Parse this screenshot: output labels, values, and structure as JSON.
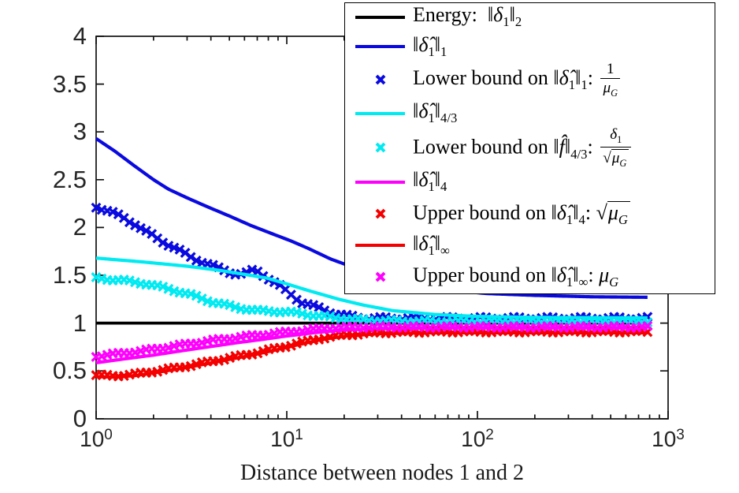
{
  "axes": {
    "xlabel": "Distance between nodes 1 and 2",
    "x_scale": "log",
    "xlim": [
      1,
      1000
    ],
    "ylim": [
      0,
      4
    ],
    "x_ticks": [
      {
        "base": "10",
        "exp": "0"
      },
      {
        "base": "10",
        "exp": "1"
      },
      {
        "base": "10",
        "exp": "2"
      },
      {
        "base": "10",
        "exp": "3"
      }
    ],
    "y_ticks": [
      "0",
      "0.5",
      "1",
      "1.5",
      "2",
      "2.5",
      "3",
      "3.5",
      "4"
    ],
    "grid": false
  },
  "chart_data": {
    "type": "line",
    "title": "",
    "xlabel": "Distance between nodes 1 and 2",
    "ylabel": "",
    "x_scale": "log",
    "xlim": [
      1,
      1000
    ],
    "ylim": [
      0,
      4
    ],
    "legend_position": "top-right",
    "series": [
      {
        "id": "energy",
        "label": "Energy: ‖δ₁‖₂",
        "color": "#000000",
        "style": "line",
        "lw": 3.8,
        "points": [
          [
            1,
            1.0
          ],
          [
            780,
            1.0
          ]
        ]
      },
      {
        "id": "l1-norm",
        "label": "‖δ̂₁‖₁",
        "color": "#0a0ae0",
        "style": "line",
        "lw": 4.2,
        "points": [
          [
            1,
            2.93
          ],
          [
            1.25,
            2.8
          ],
          [
            1.6,
            2.64
          ],
          [
            2,
            2.5
          ],
          [
            2.4,
            2.4
          ],
          [
            3,
            2.31
          ],
          [
            3.8,
            2.22
          ],
          [
            5,
            2.12
          ],
          [
            6.5,
            2.02
          ],
          [
            8.5,
            1.93
          ],
          [
            10.5,
            1.86
          ],
          [
            13,
            1.78
          ],
          [
            17,
            1.67
          ],
          [
            22.6,
            1.58
          ],
          [
            30,
            1.5
          ],
          [
            45,
            1.42
          ],
          [
            70,
            1.35
          ],
          [
            110,
            1.31
          ],
          [
            200,
            1.29
          ],
          [
            400,
            1.275
          ],
          [
            780,
            1.27
          ]
        ]
      },
      {
        "id": "l1-lower-bound",
        "label": "Lower bound on ‖δ̂₁‖₁: 1/μ_G",
        "color": "#0a0ae0",
        "style": "x",
        "wiggle": 0.015,
        "points": [
          [
            1,
            2.22
          ],
          [
            1.16,
            2.17
          ],
          [
            1.4,
            2.1
          ],
          [
            1.62,
            2.03
          ],
          [
            1.77,
            1.97
          ],
          [
            2.04,
            1.9
          ],
          [
            2.31,
            1.84
          ],
          [
            2.61,
            1.78
          ],
          [
            3.07,
            1.7
          ],
          [
            3.72,
            1.63
          ],
          [
            4.41,
            1.57
          ],
          [
            5.3,
            1.52
          ],
          [
            6,
            1.51
          ],
          [
            6.8,
            1.56
          ],
          [
            7.6,
            1.5
          ],
          [
            9,
            1.4
          ],
          [
            10.5,
            1.3
          ],
          [
            12,
            1.22
          ],
          [
            14,
            1.17
          ],
          [
            16,
            1.13
          ],
          [
            18,
            1.1
          ],
          [
            21,
            1.07
          ],
          [
            26,
            1.05
          ],
          [
            40,
            1.05
          ],
          [
            780,
            1.05
          ]
        ]
      },
      {
        "id": "l43-norm",
        "label": "‖δ̂₁‖_{4/3}",
        "color": "#00eaf2",
        "style": "line",
        "lw": 4.2,
        "points": [
          [
            1,
            1.68
          ],
          [
            1.75,
            1.64
          ],
          [
            3,
            1.595
          ],
          [
            4.5,
            1.55
          ],
          [
            6,
            1.51
          ],
          [
            7.9,
            1.47
          ],
          [
            10,
            1.41
          ],
          [
            13,
            1.34
          ],
          [
            18.7,
            1.25
          ],
          [
            25,
            1.19
          ],
          [
            36,
            1.13
          ],
          [
            60,
            1.09
          ],
          [
            100,
            1.07
          ],
          [
            200,
            1.06
          ],
          [
            780,
            1.055
          ]
        ]
      },
      {
        "id": "l43-lower-bound",
        "label": "Lower bound on ‖f̂‖_{4/3}: δ₁/√μ_G",
        "color": "#00eaf2",
        "style": "x",
        "wiggle": 0.011,
        "points": [
          [
            1,
            1.47
          ],
          [
            1.4,
            1.445
          ],
          [
            1.85,
            1.41
          ],
          [
            2.5,
            1.35
          ],
          [
            3.2,
            1.29
          ],
          [
            4.1,
            1.22
          ],
          [
            5,
            1.18
          ],
          [
            6,
            1.15
          ],
          [
            7,
            1.13
          ],
          [
            8.5,
            1.125
          ],
          [
            10,
            1.115
          ],
          [
            12,
            1.1
          ],
          [
            14,
            1.08
          ],
          [
            19,
            1.05
          ],
          [
            26,
            1.03
          ],
          [
            40,
            1.02
          ],
          [
            70,
            1.015
          ],
          [
            780,
            1.015
          ]
        ]
      },
      {
        "id": "l4-norm",
        "label": "‖δ̂₁‖₄",
        "color": "#ff00ff",
        "style": "line",
        "lw": 4.2,
        "points": [
          [
            1,
            0.585
          ],
          [
            1.4,
            0.625
          ],
          [
            2,
            0.665
          ],
          [
            2.8,
            0.71
          ],
          [
            4,
            0.755
          ],
          [
            5.5,
            0.795
          ],
          [
            7.5,
            0.83
          ],
          [
            10,
            0.865
          ],
          [
            14,
            0.9
          ],
          [
            19,
            0.925
          ],
          [
            28,
            0.94
          ],
          [
            60,
            0.95
          ],
          [
            780,
            0.95
          ]
        ]
      },
      {
        "id": "l4-upper-bound",
        "label": "Upper bound on ‖δ̂₁‖₄: √μ_G",
        "color": "#f40000",
        "style": "x",
        "wiggle": 0.01,
        "points": [
          [
            1,
            0.455
          ],
          [
            1.25,
            0.448
          ],
          [
            1.6,
            0.465
          ],
          [
            2.1,
            0.5
          ],
          [
            2.8,
            0.54
          ],
          [
            3.7,
            0.585
          ],
          [
            5,
            0.635
          ],
          [
            6.6,
            0.68
          ],
          [
            8.6,
            0.73
          ],
          [
            11,
            0.78
          ],
          [
            15,
            0.84
          ],
          [
            20,
            0.875
          ],
          [
            30,
            0.9
          ],
          [
            60,
            0.91
          ],
          [
            780,
            0.91
          ]
        ]
      },
      {
        "id": "linf-norm",
        "label": "‖δ̂₁‖_∞",
        "color": "#f40000",
        "style": "line",
        "lw": 4.0,
        "points": [
          [
            1,
            0.44
          ],
          [
            1.25,
            0.434
          ],
          [
            1.6,
            0.45
          ],
          [
            2.1,
            0.485
          ],
          [
            2.8,
            0.525
          ],
          [
            3.7,
            0.57
          ],
          [
            5,
            0.62
          ],
          [
            6.6,
            0.665
          ],
          [
            8.6,
            0.715
          ],
          [
            11,
            0.765
          ],
          [
            15,
            0.825
          ],
          [
            20,
            0.862
          ],
          [
            30,
            0.888
          ],
          [
            60,
            0.898
          ],
          [
            780,
            0.898
          ]
        ]
      },
      {
        "id": "linf-upper-bound",
        "label": "Upper bound on ‖δ̂₁‖_∞: μ_G",
        "color": "#ff00ff",
        "style": "x",
        "wiggle": 0.01,
        "points": [
          [
            1,
            0.655
          ],
          [
            1.3,
            0.68
          ],
          [
            1.75,
            0.71
          ],
          [
            2.3,
            0.745
          ],
          [
            3.1,
            0.785
          ],
          [
            4.3,
            0.825
          ],
          [
            6,
            0.86
          ],
          [
            8,
            0.885
          ],
          [
            11,
            0.915
          ],
          [
            15,
            0.94
          ],
          [
            20,
            0.955
          ],
          [
            30,
            0.96
          ],
          [
            780,
            0.96
          ]
        ]
      }
    ]
  },
  "legend": {
    "items": [
      {
        "sample": "line",
        "color": "#000000",
        "segs": [
          {
            "t": "Energy:  "
          },
          {
            "t": "‖"
          },
          {
            "i": "δ"
          },
          {
            "s": "1"
          },
          {
            "t": "‖"
          },
          {
            "s": "2"
          }
        ]
      },
      {
        "sample": "line",
        "color": "#0a0ae0",
        "segs": [
          {
            "t": "‖"
          },
          {
            "i": "δ̂"
          },
          {
            "s": "1"
          },
          {
            "t": "‖"
          },
          {
            "s": "1"
          }
        ]
      },
      {
        "sample": "x",
        "color": "#0a0ae0",
        "segs": [
          {
            "t": "Lower bound on "
          },
          {
            "t": "‖"
          },
          {
            "i": "δ̂"
          },
          {
            "s": "1"
          },
          {
            "t": "‖"
          },
          {
            "s": "1"
          },
          {
            "t": ": "
          },
          {
            "f": {
              "n": [
                {
                  "t": "1"
                }
              ],
              "d": [
                {
                  "i": "μ"
                },
                {
                  "s": "G",
                  "it": true
                }
              ]
            }
          }
        ]
      },
      {
        "sample": "line",
        "color": "#00eaf2",
        "segs": [
          {
            "t": "‖"
          },
          {
            "i": "δ̂"
          },
          {
            "s": "1"
          },
          {
            "t": "‖"
          },
          {
            "s": "4/3"
          }
        ]
      },
      {
        "sample": "x",
        "color": "#00eaf2",
        "segs": [
          {
            "t": "Lower bound on "
          },
          {
            "t": "‖"
          },
          {
            "i": "f̂"
          },
          {
            "t": "‖"
          },
          {
            "s": "4/3"
          },
          {
            "t": ": "
          },
          {
            "f": {
              "n": [
                {
                  "i": "δ"
                },
                {
                  "s": "1"
                }
              ],
              "d": [
                {
                  "q": [
                    {
                      "i": "μ"
                    },
                    {
                      "s": "G",
                      "it": true
                    }
                  ]
                }
              ]
            }
          }
        ]
      },
      {
        "sample": "line",
        "color": "#ff00ff",
        "segs": [
          {
            "t": "‖"
          },
          {
            "i": "δ̂"
          },
          {
            "s": "1"
          },
          {
            "t": "‖"
          },
          {
            "s": "4"
          }
        ]
      },
      {
        "sample": "x",
        "color": "#f40000",
        "segs": [
          {
            "t": "Upper bound on "
          },
          {
            "t": "‖"
          },
          {
            "i": "δ̂"
          },
          {
            "s": "1"
          },
          {
            "t": "‖"
          },
          {
            "s": "4"
          },
          {
            "t": ": "
          },
          {
            "q": [
              {
                "i": "μ"
              },
              {
                "s": "G",
                "it": true
              }
            ]
          }
        ]
      },
      {
        "sample": "line",
        "color": "#f40000",
        "segs": [
          {
            "t": "‖"
          },
          {
            "i": "δ̂"
          },
          {
            "s": "1"
          },
          {
            "t": "‖"
          },
          {
            "s": "∞"
          }
        ]
      },
      {
        "sample": "x",
        "color": "#ff00ff",
        "segs": [
          {
            "t": "Upper bound on "
          },
          {
            "t": "‖"
          },
          {
            "i": "δ̂"
          },
          {
            "s": "1"
          },
          {
            "t": "‖"
          },
          {
            "s": "∞"
          },
          {
            "t": ": "
          },
          {
            "i": "μ"
          },
          {
            "s": "G",
            "it": true
          }
        ]
      }
    ]
  }
}
